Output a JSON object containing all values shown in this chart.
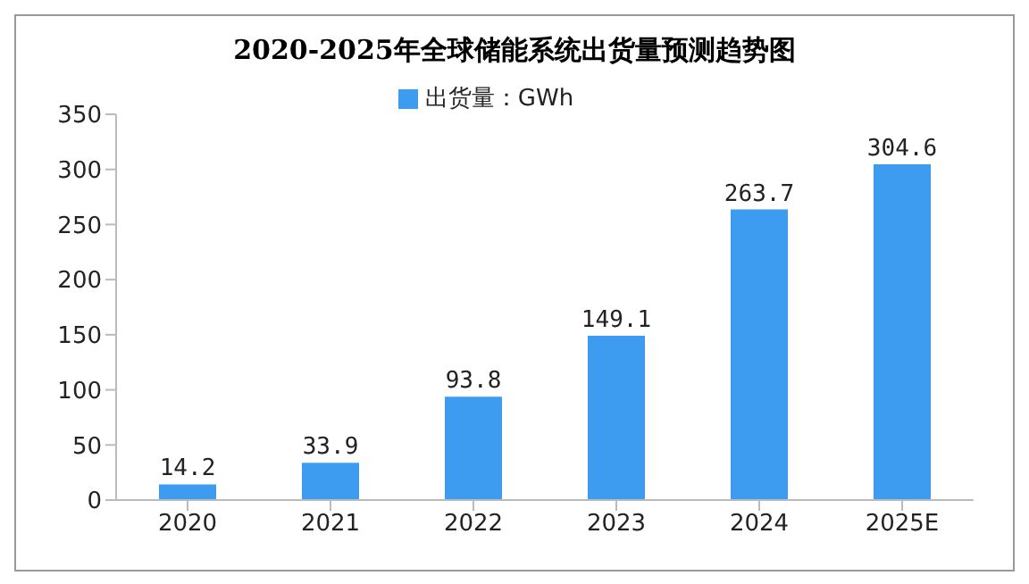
{
  "chart_data": {
    "type": "bar",
    "title": "2020-2025年全球储能系统出货量预测趋势图",
    "categories": [
      "2020",
      "2021",
      "2022",
      "2023",
      "2024",
      "2025E"
    ],
    "series": [
      {
        "name": "出货量：GWh",
        "color": "#3d9cf0",
        "values": [
          14.2,
          33.9,
          93.8,
          149.1,
          263.7,
          304.6
        ]
      }
    ],
    "ylim": [
      0,
      350
    ],
    "yticks": [
      0,
      50,
      100,
      150,
      200,
      250,
      300,
      350
    ],
    "grid": false,
    "legend": "top",
    "data_labels": true
  }
}
